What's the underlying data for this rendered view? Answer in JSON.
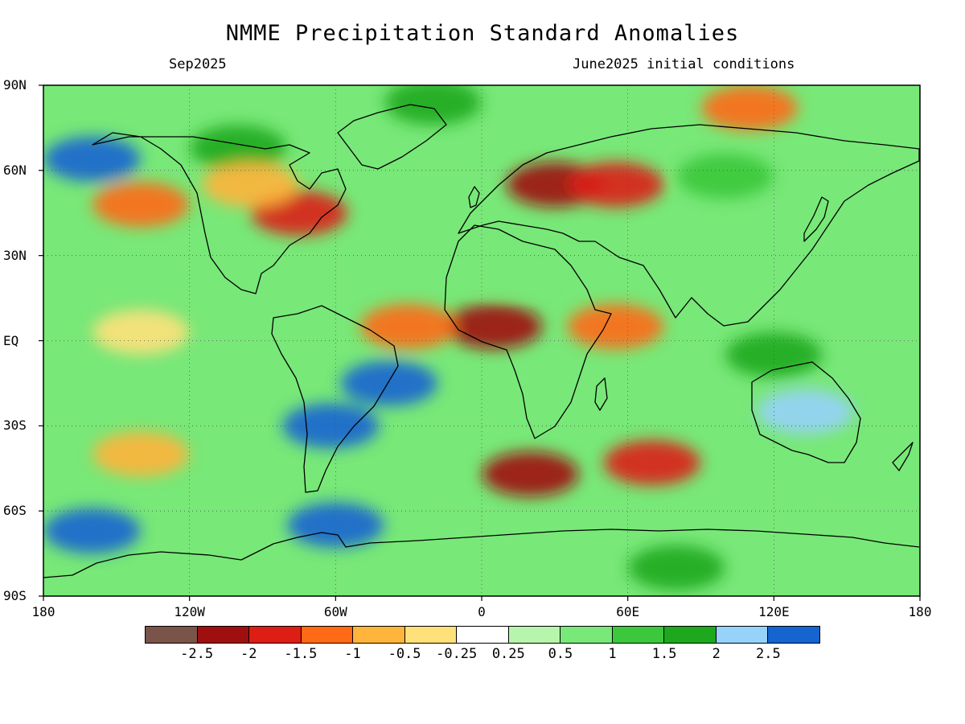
{
  "header": {
    "title": "NMME Precipitation Standard Anomalies",
    "valid_month": "Sep2025",
    "initial_conditions": "June2025 initial conditions"
  },
  "axes": {
    "lat_labels": [
      "90N",
      "60N",
      "30N",
      "EQ",
      "30S",
      "60S",
      "90S"
    ],
    "lat_values": [
      90,
      60,
      30,
      0,
      -30,
      -60,
      -90
    ],
    "lon_labels": [
      "180",
      "120W",
      "60W",
      "0",
      "60E",
      "120E",
      "180"
    ],
    "lon_values": [
      -180,
      -120,
      -60,
      0,
      60,
      120,
      180
    ]
  },
  "colorbar": {
    "colors": [
      "#7a5349",
      "#a00f0f",
      "#dc1e14",
      "#ff6a14",
      "#ffb43c",
      "#ffe17a",
      "#ffffff",
      "#b8f5ac",
      "#78e878",
      "#3cc83c",
      "#1ea81e",
      "#96d2fa",
      "#1464d2"
    ],
    "labels": [
      "-2.5",
      "-2",
      "-1.5",
      "-1",
      "-0.5",
      "-0.25",
      "0.25",
      "0.5",
      "1",
      "1.5",
      "2",
      "2.5"
    ]
  },
  "anomaly_regions": [
    {
      "region": "Arctic north of Greenland",
      "lon": -20,
      "lat": 84,
      "value": 1.5
    },
    {
      "region": "Arctic north of Siberia",
      "lon": 110,
      "lat": 82,
      "value": -1.5
    },
    {
      "region": "Canadian Arctic",
      "lon": -100,
      "lat": 68,
      "value": 1.5
    },
    {
      "region": "Alaska / Bering",
      "lon": -160,
      "lat": 64,
      "value": 2.5
    },
    {
      "region": "Eastern North America",
      "lon": -75,
      "lat": 45,
      "value": -2.0
    },
    {
      "region": "NE Pacific",
      "lon": -140,
      "lat": 48,
      "value": -1.5
    },
    {
      "region": "Central Canada",
      "lon": -95,
      "lat": 55,
      "value": -1.0
    },
    {
      "region": "Eastern Europe / Russia",
      "lon": 30,
      "lat": 55,
      "value": -2.5
    },
    {
      "region": "Western Siberia",
      "lon": 55,
      "lat": 55,
      "value": -2.0
    },
    {
      "region": "Siberia",
      "lon": 100,
      "lat": 58,
      "value": 1.0
    },
    {
      "region": "Sahara",
      "lon": 10,
      "lat": 25,
      "value": 0.5
    },
    {
      "region": "Sahel / Gulf of Guinea",
      "lon": 5,
      "lat": 5,
      "value": -2.5
    },
    {
      "region": "Tropical Atlantic",
      "lon": -30,
      "lat": 5,
      "value": -1.5
    },
    {
      "region": "Eastern tropical Pacific",
      "lon": -140,
      "lat": 3,
      "value": -0.5
    },
    {
      "region": "Horn of Africa / W Indian Ocean",
      "lon": 55,
      "lat": 5,
      "value": -1.5
    },
    {
      "region": "Maritime Continent",
      "lon": 120,
      "lat": -5,
      "value": 1.5
    },
    {
      "region": "Australia",
      "lon": 133,
      "lat": -25,
      "value": 2.0
    },
    {
      "region": "East Brazil coast",
      "lon": -38,
      "lat": -15,
      "value": 2.5
    },
    {
      "region": "Argentina",
      "lon": -62,
      "lat": -30,
      "value": 2.5
    },
    {
      "region": "Southern Ocean Atlantic sector",
      "lon": 20,
      "lat": -47,
      "value": -2.5
    },
    {
      "region": "Southern Ocean Indian sector",
      "lon": 70,
      "lat": -43,
      "value": -2.0
    },
    {
      "region": "South Pacific",
      "lon": -140,
      "lat": -40,
      "value": -1.0
    },
    {
      "region": "Antarctic coast Pacific",
      "lon": -160,
      "lat": -67,
      "value": 2.5
    },
    {
      "region": "Antarctic Peninsula",
      "lon": -60,
      "lat": -65,
      "value": 2.5
    },
    {
      "region": "Antarctica interior Indian sector",
      "lon": 80,
      "lat": -80,
      "value": 1.5
    }
  ]
}
